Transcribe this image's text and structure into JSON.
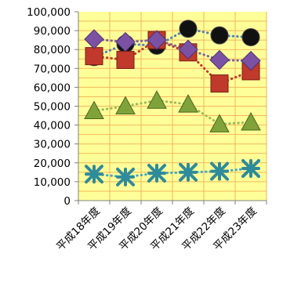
{
  "chart_data": {
    "type": "line",
    "categories": [
      "平成18年度",
      "平成19年度",
      "平成20年度",
      "平成21年度",
      "平成22年度",
      "平成23年度"
    ],
    "ylim": [
      0,
      100000
    ],
    "yticks": [
      "0",
      "10,000",
      "20,000",
      "30,000",
      "40,000",
      "50,000",
      "60,000",
      "70,000",
      "80,000",
      "90,000",
      "100,000"
    ],
    "grid": true,
    "plot_background": "#ffff99",
    "gridline_color": "#f2b75c",
    "series": [
      {
        "marker": "circle",
        "color": "#111111",
        "line_color": "#4f81bd",
        "values": [
          76000,
          83000,
          82000,
          91000,
          87500,
          86500
        ]
      },
      {
        "marker": "square",
        "color": "#c0392b",
        "line_color": "#c0392b",
        "values": [
          76500,
          74500,
          85000,
          78500,
          62000,
          68500
        ]
      },
      {
        "marker": "diamond",
        "color": "#7b52a3",
        "line_color": "#8064a2",
        "values": [
          85500,
          84000,
          85000,
          80000,
          74500,
          74000
        ]
      },
      {
        "marker": "triangle",
        "color": "#7fa33a",
        "line_color": "#9bbb59",
        "values": [
          47500,
          50000,
          53000,
          51000,
          40500,
          41500
        ]
      },
      {
        "marker": "asterisk",
        "color": "#2e8b9a",
        "line_color": "#3fa9c9",
        "values": [
          14000,
          12500,
          14500,
          15000,
          15500,
          17000
        ]
      }
    ]
  }
}
